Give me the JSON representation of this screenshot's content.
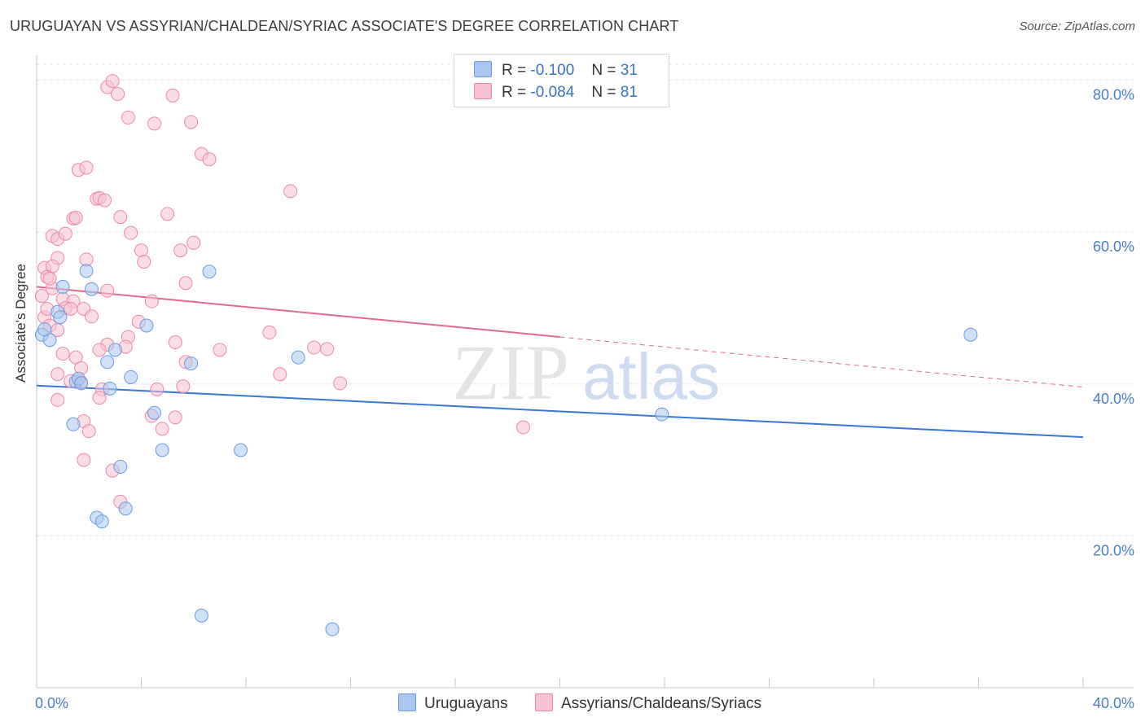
{
  "title": "URUGUAYAN VS ASSYRIAN/CHALDEAN/SYRIAC ASSOCIATE'S DEGREE CORRELATION CHART",
  "source": "Source: ZipAtlas.com",
  "watermark": {
    "zip": "ZIP",
    "atlas": "atlas"
  },
  "legend": {
    "r_label": "R =",
    "n_label": "N =",
    "series": [
      {
        "r": "-0.100",
        "n": "31",
        "color": "#a9c6ef",
        "stroke": "#6b9be0"
      },
      {
        "r": "-0.084",
        "n": "81",
        "color": "#f7c1d2",
        "stroke": "#e98aaa"
      }
    ]
  },
  "bottom_legend": [
    "Uruguayans",
    "Assyrians/Chaldeans/Syriacs"
  ],
  "chart_data": {
    "type": "scatter",
    "xlabel": "",
    "ylabel": "Associate's Degree",
    "xlim": [
      0,
      40
    ],
    "ylim": [
      0,
      82
    ],
    "x_ticks": [
      {
        "value": 0,
        "label": "0.0%"
      },
      {
        "value": 40,
        "label": "40.0%"
      }
    ],
    "x_minor_ticks": [
      4,
      8,
      12,
      16,
      20,
      24,
      28,
      32,
      36,
      40
    ],
    "y_ticks": [
      {
        "value": 20,
        "label": "20.0%"
      },
      {
        "value": 40,
        "label": "40.0%"
      },
      {
        "value": 60,
        "label": "60.0%"
      },
      {
        "value": 80,
        "label": "80.0%"
      }
    ],
    "grid": true,
    "series": [
      {
        "name": "Uruguayans",
        "color": "#a9c6ef",
        "stroke": "#6b9be0",
        "trend": {
          "x": [
            0,
            40
          ],
          "y": [
            39.8,
            33.0
          ],
          "color": "#3a78d4",
          "dashed_from": null
        },
        "points": [
          [
            0.2,
            46.5
          ],
          [
            0.5,
            45.8
          ],
          [
            0.8,
            49.5
          ],
          [
            0.9,
            48.8
          ],
          [
            1.0,
            52.8
          ],
          [
            1.4,
            34.7
          ],
          [
            1.5,
            40.3
          ],
          [
            1.6,
            40.7
          ],
          [
            1.7,
            40.1
          ],
          [
            1.9,
            54.9
          ],
          [
            2.1,
            52.5
          ],
          [
            2.7,
            42.9
          ],
          [
            2.8,
            39.4
          ],
          [
            3.0,
            44.5
          ],
          [
            3.2,
            29.1
          ],
          [
            3.4,
            23.6
          ],
          [
            3.6,
            40.9
          ],
          [
            4.2,
            47.7
          ],
          [
            4.5,
            36.2
          ],
          [
            4.8,
            31.3
          ],
          [
            5.9,
            42.7
          ],
          [
            6.3,
            9.5
          ],
          [
            6.6,
            54.8
          ],
          [
            7.8,
            31.3
          ],
          [
            10.0,
            43.5
          ],
          [
            11.3,
            7.7
          ],
          [
            2.3,
            22.4
          ],
          [
            2.5,
            21.9
          ],
          [
            0.3,
            47.2
          ],
          [
            23.9,
            36.0
          ],
          [
            35.7,
            46.5
          ]
        ]
      },
      {
        "name": "Assyrians/Chaldeans/Syriacs",
        "color": "#f7c1d2",
        "stroke": "#e98aaa",
        "trend": {
          "x": [
            0,
            40
          ],
          "y": [
            52.8,
            39.6
          ],
          "color": "#e06b92",
          "dashed_from": 20
        },
        "points": [
          [
            2.7,
            79.1
          ],
          [
            2.9,
            79.9
          ],
          [
            3.1,
            78.2
          ],
          [
            3.5,
            75.1
          ],
          [
            4.5,
            74.3
          ],
          [
            5.2,
            78.0
          ],
          [
            5.9,
            74.5
          ],
          [
            6.3,
            70.3
          ],
          [
            6.6,
            69.6
          ],
          [
            9.7,
            65.4
          ],
          [
            1.6,
            68.2
          ],
          [
            1.9,
            68.5
          ],
          [
            2.3,
            64.4
          ],
          [
            2.4,
            64.5
          ],
          [
            2.6,
            64.2
          ],
          [
            1.4,
            61.8
          ],
          [
            1.5,
            61.9
          ],
          [
            3.2,
            62.0
          ],
          [
            5.0,
            62.4
          ],
          [
            0.6,
            59.5
          ],
          [
            0.8,
            59.1
          ],
          [
            1.1,
            59.8
          ],
          [
            3.6,
            59.9
          ],
          [
            4.0,
            57.6
          ],
          [
            5.5,
            57.6
          ],
          [
            6.0,
            58.6
          ],
          [
            0.8,
            56.6
          ],
          [
            1.9,
            56.4
          ],
          [
            4.1,
            56.1
          ],
          [
            0.3,
            55.3
          ],
          [
            0.6,
            55.5
          ],
          [
            0.4,
            54.1
          ],
          [
            5.7,
            53.3
          ],
          [
            0.6,
            52.6
          ],
          [
            2.7,
            52.3
          ],
          [
            1.0,
            51.2
          ],
          [
            1.4,
            50.9
          ],
          [
            0.2,
            51.6
          ],
          [
            4.4,
            50.9
          ],
          [
            1.8,
            49.9
          ],
          [
            1.1,
            50.0
          ],
          [
            1.3,
            49.9
          ],
          [
            2.1,
            48.9
          ],
          [
            0.3,
            48.8
          ],
          [
            0.5,
            47.7
          ],
          [
            0.8,
            47.1
          ],
          [
            3.9,
            48.2
          ],
          [
            8.9,
            46.8
          ],
          [
            3.5,
            46.2
          ],
          [
            2.7,
            45.2
          ],
          [
            2.4,
            44.5
          ],
          [
            3.4,
            44.9
          ],
          [
            5.3,
            45.5
          ],
          [
            7.0,
            44.5
          ],
          [
            10.6,
            44.8
          ],
          [
            11.1,
            44.6
          ],
          [
            1.0,
            44.0
          ],
          [
            1.5,
            43.5
          ],
          [
            1.7,
            42.1
          ],
          [
            5.7,
            42.9
          ],
          [
            0.8,
            41.3
          ],
          [
            1.3,
            40.4
          ],
          [
            1.7,
            40.2
          ],
          [
            9.3,
            41.3
          ],
          [
            11.6,
            40.1
          ],
          [
            2.5,
            39.3
          ],
          [
            4.6,
            39.3
          ],
          [
            5.6,
            39.7
          ],
          [
            0.8,
            37.9
          ],
          [
            2.4,
            38.2
          ],
          [
            4.4,
            35.8
          ],
          [
            5.3,
            35.6
          ],
          [
            1.8,
            35.1
          ],
          [
            2.0,
            33.8
          ],
          [
            4.8,
            34.1
          ],
          [
            18.6,
            34.3
          ],
          [
            1.8,
            30.0
          ],
          [
            2.9,
            28.6
          ],
          [
            3.2,
            24.5
          ],
          [
            0.5,
            53.9
          ],
          [
            0.4,
            49.9
          ]
        ]
      }
    ]
  }
}
